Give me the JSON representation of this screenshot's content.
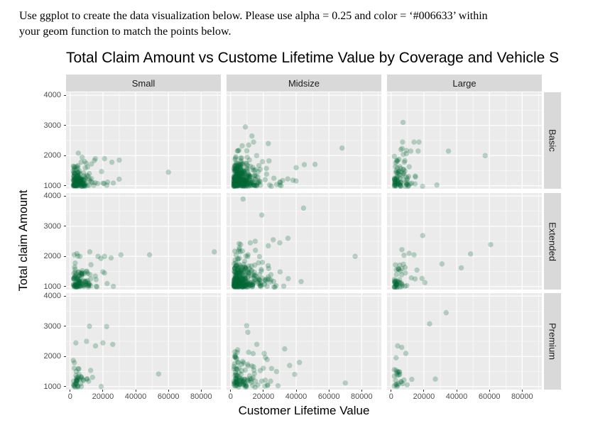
{
  "instructions": {
    "line1": "Use ggplot to create the data visualization below. Please use alpha = 0.25 and color = ‘#006633’ within",
    "line2": "your geom function to match the points below."
  },
  "chart_data": {
    "type": "scatter",
    "title": "Total Claim Amount vs Custome Lifetime Value by Coverage and Vehicle S",
    "xlabel": "Customer Lifetime Value",
    "ylabel": "Total claim Amount",
    "facet_columns": [
      "Small",
      "Midsize",
      "Large"
    ],
    "facet_rows": [
      "Basic",
      "Extended",
      "Premium"
    ],
    "x_ticks": [
      0,
      20000,
      40000,
      60000,
      80000
    ],
    "x_tick_labels": [
      "0",
      "20000",
      "40000",
      "60000",
      "80000"
    ],
    "y_ticks": [
      1000,
      2000,
      3000,
      4000
    ],
    "y_tick_labels": [
      "1000",
      "2000",
      "3000",
      "4000"
    ],
    "x_minor_ticks": [
      10000,
      30000,
      50000,
      70000,
      90000
    ],
    "y_minor_ticks": [
      1500,
      2500,
      3500
    ],
    "xlim": [
      -2500,
      92000
    ],
    "ylim": [
      900,
      4100
    ],
    "grid": true,
    "point_style": {
      "color": "#006633",
      "alpha": 0.25,
      "shape": "circle"
    },
    "colors": {
      "panel_bg": "#EBEBEB",
      "strip_bg": "#D9D9D9",
      "gridline": "#FFFFFF",
      "tick_text": "#4D4D4D",
      "tick_mark": "#333333"
    },
    "distribution_note": "each facet: dense cluster of overlapping translucent points near low CLV (2000-15000) and claims 1000-1700, with sparse exponential tail to higher values",
    "facets": [
      {
        "row": "Basic",
        "col": "Small",
        "points_in_cluster": 165,
        "x_spread": 5200,
        "x_max": 34000,
        "y_spread": 260,
        "y_max": 2000,
        "seed": 11,
        "outliers": [
          [
            60000,
            1450
          ],
          [
            30000,
            1850
          ],
          [
            25500,
            1780
          ],
          [
            5000,
            2080
          ],
          [
            21000,
            1900
          ]
        ]
      },
      {
        "row": "Basic",
        "col": "Midsize",
        "points_in_cluster": 330,
        "x_spread": 6500,
        "x_max": 52000,
        "y_spread": 330,
        "y_max": 2400,
        "seed": 22,
        "outliers": [
          [
            9000,
            2950
          ],
          [
            13000,
            2650
          ],
          [
            68000,
            2250
          ],
          [
            51500,
            1710
          ],
          [
            14000,
            2450
          ],
          [
            23000,
            2400
          ],
          [
            45000,
            1700
          ],
          [
            40000,
            1600
          ],
          [
            11000,
            2350
          ]
        ]
      },
      {
        "row": "Basic",
        "col": "Large",
        "points_in_cluster": 90,
        "x_spread": 4200,
        "x_max": 28000,
        "y_spread": 280,
        "y_max": 2250,
        "seed": 33,
        "outliers": [
          [
            7300,
            3100
          ],
          [
            7000,
            2450
          ],
          [
            14000,
            2450
          ],
          [
            57400,
            2000
          ],
          [
            6000,
            2200
          ],
          [
            12000,
            2150
          ],
          [
            16500,
            2150
          ],
          [
            35000,
            2150
          ],
          [
            17000,
            2450
          ]
        ]
      },
      {
        "row": "Extended",
        "col": "Small",
        "points_in_cluster": 110,
        "x_spread": 5200,
        "x_max": 30000,
        "y_spread": 300,
        "y_max": 2100,
        "seed": 44,
        "outliers": [
          [
            12000,
            2150
          ],
          [
            48500,
            2050
          ],
          [
            88000,
            2150
          ],
          [
            17000,
            2000
          ],
          [
            21000,
            2000
          ],
          [
            25000,
            1950
          ],
          [
            31000,
            2050
          ],
          [
            2500,
            2050
          ],
          [
            6000,
            2000
          ]
        ]
      },
      {
        "row": "Extended",
        "col": "Midsize",
        "points_in_cluster": 300,
        "x_spread": 6800,
        "x_max": 46000,
        "y_spread": 360,
        "y_max": 2500,
        "seed": 55,
        "outliers": [
          [
            7600,
            3900
          ],
          [
            44500,
            3600
          ],
          [
            19000,
            3370
          ],
          [
            76000,
            2000
          ],
          [
            35000,
            2600
          ],
          [
            12000,
            2450
          ],
          [
            30000,
            2450
          ],
          [
            23000,
            2350
          ],
          [
            15000,
            2500
          ],
          [
            26000,
            2550
          ]
        ]
      },
      {
        "row": "Extended",
        "col": "Large",
        "points_in_cluster": 52,
        "x_spread": 5500,
        "x_max": 26000,
        "y_spread": 330,
        "y_max": 2250,
        "seed": 66,
        "outliers": [
          [
            19300,
            2690
          ],
          [
            60800,
            2390
          ],
          [
            48500,
            2080
          ],
          [
            31000,
            1750
          ],
          [
            42800,
            1620
          ],
          [
            11000,
            2100
          ],
          [
            14000,
            2050
          ]
        ]
      },
      {
        "row": "Premium",
        "col": "Small",
        "points_in_cluster": 44,
        "x_spread": 5200,
        "x_max": 24000,
        "y_spread": 400,
        "y_max": 2250,
        "seed": 77,
        "outliers": [
          [
            11800,
            3000
          ],
          [
            22300,
            2990
          ],
          [
            20000,
            2450
          ],
          [
            26000,
            2400
          ],
          [
            54000,
            1420
          ],
          [
            10000,
            2500
          ],
          [
            15500,
            2350
          ],
          [
            3500,
            2450
          ]
        ]
      },
      {
        "row": "Premium",
        "col": "Midsize",
        "points_in_cluster": 112,
        "x_spread": 7000,
        "x_max": 42000,
        "y_spread": 420,
        "y_max": 2300,
        "seed": 88,
        "outliers": [
          [
            9800,
            3020
          ],
          [
            10500,
            2800
          ],
          [
            33000,
            2250
          ],
          [
            70000,
            1120
          ],
          [
            42000,
            1800
          ],
          [
            36000,
            1700
          ],
          [
            25000,
            1600
          ],
          [
            20500,
            2100
          ],
          [
            28000,
            1500
          ],
          [
            16000,
            2400
          ]
        ]
      },
      {
        "row": "Premium",
        "col": "Large",
        "points_in_cluster": 25,
        "x_spread": 3800,
        "x_max": 15000,
        "y_spread": 380,
        "y_max": 2200,
        "seed": 99,
        "outliers": [
          [
            33600,
            3450
          ],
          [
            23500,
            3080
          ],
          [
            27000,
            1250
          ],
          [
            4000,
            2350
          ],
          [
            6500,
            2300
          ],
          [
            9000,
            2100
          ]
        ]
      }
    ]
  }
}
